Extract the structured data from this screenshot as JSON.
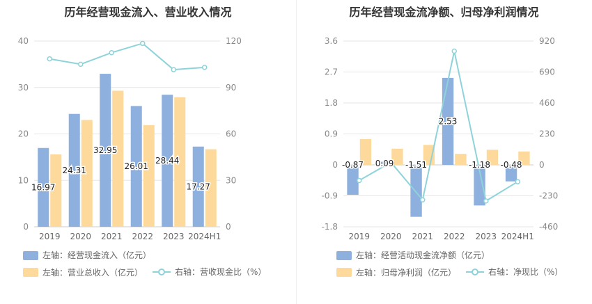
{
  "colors": {
    "bar1": "#8eb0de",
    "bar2": "#fdd99b",
    "line": "#8ed3d9",
    "grid": "#e6e6e6",
    "axis": "#888888"
  },
  "chart_data": [
    {
      "type": "bar",
      "title": "历年经营现金流入、营业收入情况",
      "categories": [
        "2019",
        "2020",
        "2021",
        "2022",
        "2023",
        "2024H1"
      ],
      "ylim_left": [
        0,
        40
      ],
      "yticks_left": [
        "0",
        "10",
        "20",
        "30",
        "40"
      ],
      "ylim_right": [
        0,
        120
      ],
      "yticks_right": [
        "0",
        "30",
        "60",
        "90",
        "120"
      ],
      "series": [
        {
          "name": "左轴：经营现金流入（亿元）",
          "kind": "bar",
          "axis": "left",
          "values": [
            16.97,
            24.31,
            32.95,
            26.01,
            28.44,
            17.27
          ],
          "labels": [
            "16.97",
            "24.31",
            "32.95",
            "26.01",
            "28.44",
            "17.27"
          ]
        },
        {
          "name": "左轴：营业总收入（亿元）",
          "kind": "bar",
          "axis": "left",
          "values": [
            15.6,
            23.0,
            29.3,
            21.9,
            27.9,
            16.7
          ]
        },
        {
          "name": "右轴：营收现金比（%）",
          "kind": "line",
          "axis": "right",
          "values": [
            108.5,
            105.0,
            112.5,
            118.5,
            101.5,
            103.0
          ]
        }
      ],
      "legend_rows": [
        [
          "左轴：经营现金流入（亿元）"
        ],
        [
          "左轴：营业总收入（亿元）",
          "右轴：营收现金比（%）"
        ]
      ]
    },
    {
      "type": "bar",
      "title": "历年经营现金流净额、归母净利润情况",
      "categories": [
        "2019",
        "2020",
        "2021",
        "2022",
        "2023",
        "2024H1"
      ],
      "ylim_left": [
        -1.8,
        3.6
      ],
      "yticks_left": [
        "-1.8",
        "-0.9",
        "0",
        "0.9",
        "1.8",
        "2.7",
        "3.6"
      ],
      "ylim_right": [
        -460,
        920
      ],
      "yticks_right": [
        "-460",
        "-230",
        "0",
        "230",
        "460",
        "690",
        "920"
      ],
      "series": [
        {
          "name": "左轴：经营活动现金流净额（亿元）",
          "kind": "bar",
          "axis": "left",
          "values": [
            -0.87,
            0.09,
            -1.51,
            2.53,
            -1.18,
            -0.48
          ],
          "labels": [
            "-0.87",
            "0.09",
            "-1.51",
            "2.53",
            "-1.18",
            "-0.48"
          ]
        },
        {
          "name": "左轴：归母净利润（亿元）",
          "kind": "bar",
          "axis": "left",
          "values": [
            0.75,
            0.47,
            0.58,
            0.32,
            0.44,
            0.39
          ]
        },
        {
          "name": "右轴：净现比（%）",
          "kind": "line",
          "axis": "right",
          "values": [
            -116,
            19,
            -260,
            845,
            -268,
            -125
          ]
        }
      ],
      "legend_rows": [
        [
          "左轴：经营活动现金流净额（亿元）"
        ],
        [
          "左轴：归母净利润（亿元）",
          "右轴：净现比（%）"
        ]
      ]
    }
  ]
}
